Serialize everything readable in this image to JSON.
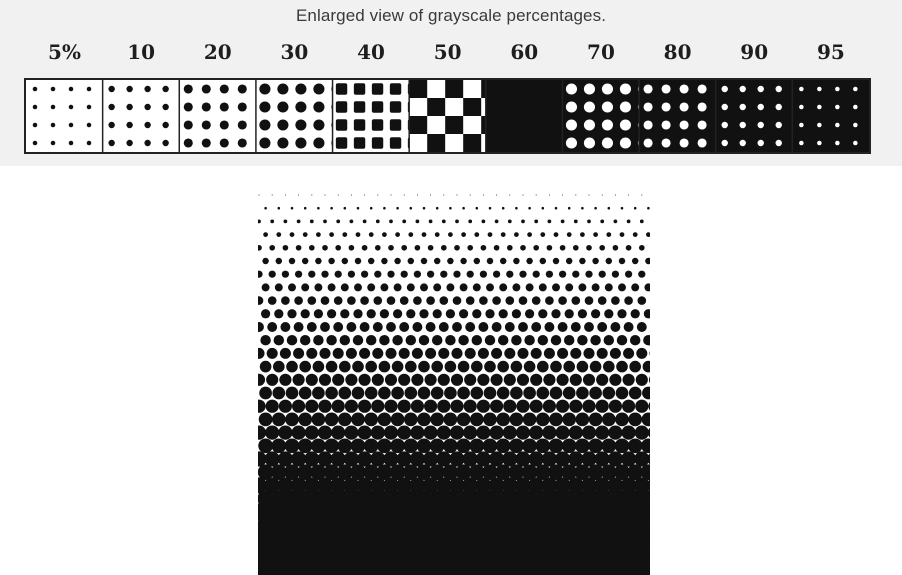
{
  "title": "Enlarged view of grayscale percentages.",
  "percentage_labels": [
    "5%",
    "10",
    "20",
    "30",
    "40",
    "50",
    "60",
    "70",
    "80",
    "90",
    "95"
  ],
  "swatch_coverage": [
    0.05,
    0.1,
    0.2,
    0.3,
    0.4,
    0.5,
    0.6,
    0.7,
    0.8,
    0.9,
    0.95
  ],
  "gradient_coverage_range": [
    0.0,
    1.0
  ],
  "ink_color": "#111111",
  "paper_color": "#ffffff"
}
